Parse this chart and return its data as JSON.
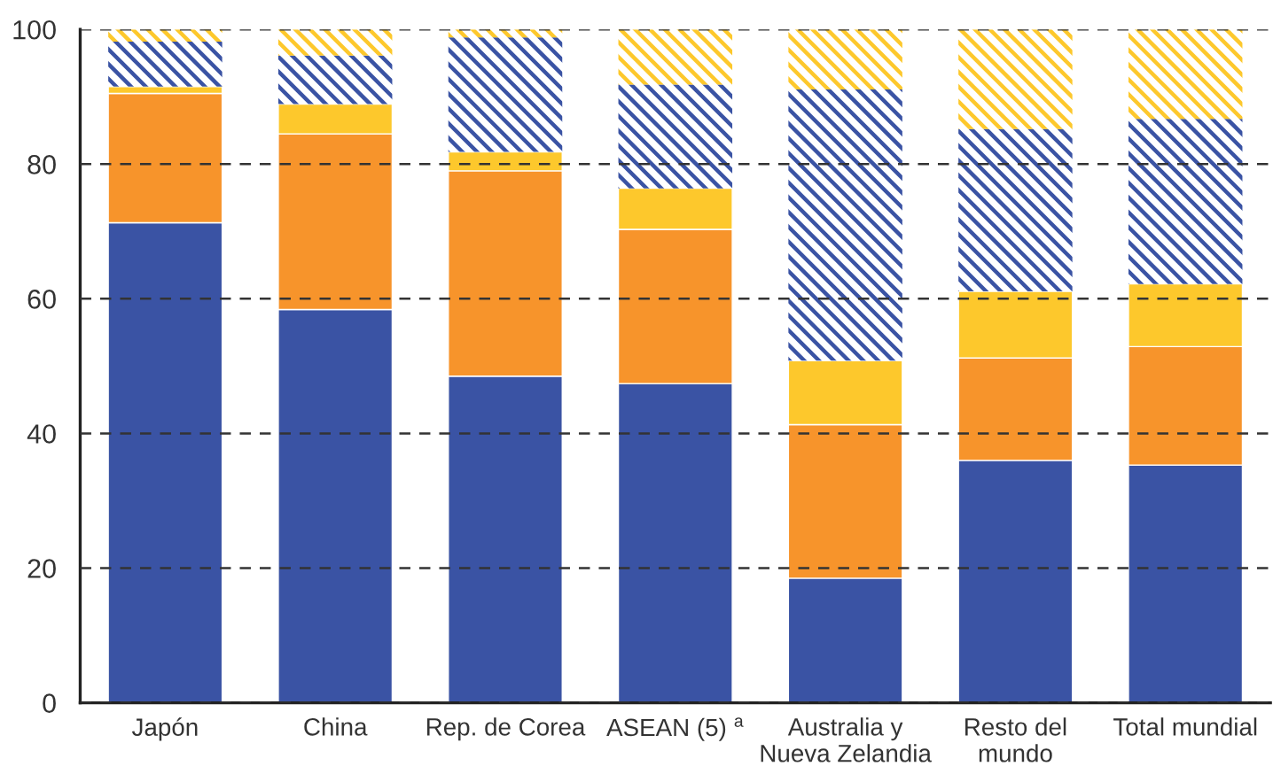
{
  "chart_data": {
    "type": "bar",
    "stacked": true,
    "categories": [
      "Japón",
      "China",
      "Rep. de Corea",
      "ASEAN (5) $^{a}$",
      "Australia y\nNueva Zelandia",
      "Resto del\nmundo",
      "Total mundial"
    ],
    "series": [
      {
        "color": "#3a53a4",
        "values": [
          71.3,
          58.4,
          48.5,
          47.4,
          18.5,
          36.0,
          35.3
        ]
      },
      {
        "color": "#f7942b",
        "values": [
          19.2,
          26.1,
          30.5,
          22.9,
          22.8,
          15.2,
          17.6
        ]
      },
      {
        "color": "#fdc82c",
        "values": [
          1.0,
          4.4,
          2.8,
          6.1,
          9.5,
          9.9,
          9.3
        ]
      },
      {
        "color": "#3a53a4",
        "values": [
          6.7,
          7.2,
          17.0,
          15.4,
          40.3,
          24.1,
          24.5
        ]
      },
      {
        "color": "#fdc82c",
        "values": [
          1.8,
          3.9,
          1.2,
          8.2,
          8.9,
          14.8,
          13.3
        ]
      }
    ],
    "ylim": [
      0,
      100
    ],
    "yticks": [
      0,
      20,
      40,
      60,
      80,
      100
    ],
    "grid": "y"
  }
}
